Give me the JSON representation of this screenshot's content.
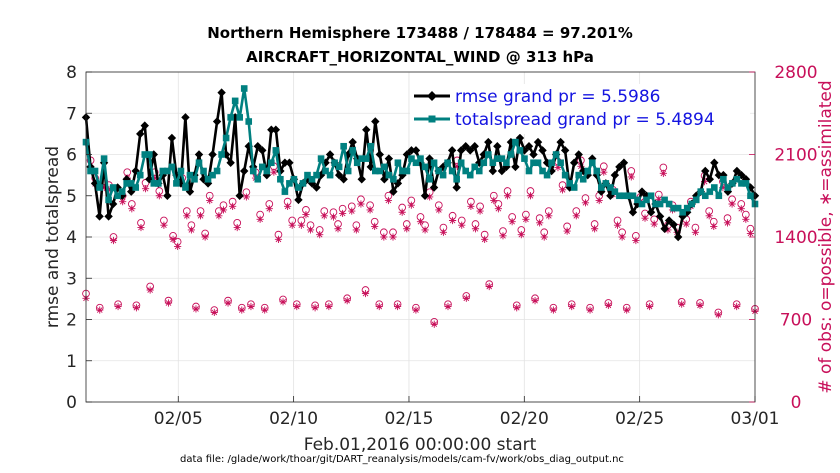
{
  "chart_data": {
    "type": "line",
    "title_line1": "Northern Hemisphere 173488 / 178484 = 97.201%",
    "title_line2": "AIRCRAFT_HORIZONTAL_WIND @ 313 hPa",
    "ylabel": "rmse and totalspread",
    "ylabel_right": "# of obs: o=possible, ∗=assimilated",
    "xlabel": "Feb.01,2016 00:00:00 start",
    "footnote": "data file: /glade/work/thoar/git/DART_reanalysis/models/cam-fv/work/obs_diag_output.nc",
    "ylim": [
      0,
      8
    ],
    "ylim_right": [
      0,
      2800
    ],
    "xlim": [
      1,
      30
    ],
    "y_ticks": [
      {
        "v": 0,
        "label": "0"
      },
      {
        "v": 1,
        "label": "1"
      },
      {
        "v": 2,
        "label": "2"
      },
      {
        "v": 3,
        "label": "3"
      },
      {
        "v": 4,
        "label": "4"
      },
      {
        "v": 5,
        "label": "5"
      },
      {
        "v": 6,
        "label": "6"
      },
      {
        "v": 7,
        "label": "7"
      },
      {
        "v": 8,
        "label": "8"
      }
    ],
    "y_right_ticks": [
      {
        "v": 0,
        "label": "0"
      },
      {
        "v": 700,
        "label": "700"
      },
      {
        "v": 1400,
        "label": "1400"
      },
      {
        "v": 2100,
        "label": "2100"
      },
      {
        "v": 2800,
        "label": "2800"
      }
    ],
    "x_ticks": [
      {
        "v": 5,
        "label": "02/05"
      },
      {
        "v": 10,
        "label": "02/10"
      },
      {
        "v": 15,
        "label": "02/15"
      },
      {
        "v": 20,
        "label": "02/20"
      },
      {
        "v": 25,
        "label": "02/25"
      },
      {
        "v": 30,
        "label": "03/01"
      }
    ],
    "series": [
      {
        "name": "rmse",
        "legend": "rmse grand pr = 5.5986",
        "color": "#000000",
        "marker": "diamond",
        "values": [
          6.9,
          5.7,
          5.3,
          4.5,
          5.8,
          4.5,
          4.8,
          5.2,
          5.0,
          5.4,
          5.1,
          5.6,
          6.5,
          6.7,
          5.4,
          6.0,
          5.3,
          5.5,
          5.0,
          6.4,
          5.5,
          5.3,
          6.9,
          5.1,
          5.5,
          6.0,
          5.4,
          5.3,
          6.0,
          6.8,
          7.5,
          6.0,
          5.8,
          6.9,
          5.0,
          5.6,
          6.2,
          5.7,
          6.2,
          6.1,
          5.5,
          6.6,
          6.6,
          5.6,
          5.8,
          5.8,
          5.4,
          4.9,
          5.3,
          5.4,
          5.3,
          5.2,
          5.5,
          5.8,
          6.0,
          5.8,
          5.5,
          5.4,
          6.0,
          6.3,
          5.9,
          5.4,
          6.6,
          5.7,
          6.8,
          6.0,
          5.4,
          5.9,
          5.1,
          5.3,
          5.5,
          6.0,
          6.1,
          6.1,
          5.8,
          5.0,
          5.9,
          5.2,
          5.6,
          5.7,
          5.8,
          6.1,
          5.2,
          6.1,
          6.2,
          6.1,
          6.2,
          5.8,
          6.0,
          6.3,
          5.6,
          6.2,
          5.6,
          5.7,
          6.3,
          5.7,
          6.4,
          6.1,
          6.2,
          6.0,
          6.3,
          6.1,
          5.8,
          5.6,
          6.0,
          6.3,
          6.1,
          5.2,
          5.8,
          6.0,
          5.6,
          5.5,
          5.9,
          5.5,
          5.1,
          5.3,
          5.0,
          5.5,
          5.7,
          5.8,
          5.0,
          4.6,
          4.8,
          5.1,
          5.0,
          4.6,
          4.8,
          4.5,
          4.2,
          4.4,
          4.3,
          4.0,
          4.5,
          4.6,
          4.8,
          5.0,
          5.1,
          5.6,
          5.4,
          5.8,
          5.5,
          5.5,
          5.1,
          5.3,
          5.6,
          5.5,
          5.4,
          5.2,
          5.0
        ]
      },
      {
        "name": "totalspread",
        "legend": "totalspread grand pr = 5.4894",
        "color": "#008080",
        "marker": "square",
        "values": [
          6.3,
          5.6,
          5.6,
          5.2,
          5.9,
          4.9,
          5.2,
          5.0,
          5.1,
          5.3,
          5.3,
          5.2,
          5.5,
          6.0,
          6.0,
          5.3,
          5.3,
          5.6,
          5.6,
          5.7,
          5.3,
          5.6,
          5.2,
          5.5,
          5.4,
          5.8,
          5.6,
          5.4,
          5.5,
          5.6,
          6.0,
          6.4,
          6.9,
          7.3,
          6.9,
          7.6,
          6.8,
          5.6,
          5.4,
          5.7,
          5.6,
          5.8,
          6.1,
          5.4,
          5.1,
          5.3,
          5.4,
          5.2,
          5.3,
          5.5,
          5.4,
          5.5,
          5.9,
          5.6,
          5.5,
          5.8,
          5.7,
          6.2,
          5.6,
          6.1,
          5.8,
          5.9,
          5.9,
          6.2,
          5.6,
          5.6,
          5.7,
          5.5,
          5.4,
          5.8,
          5.6,
          5.6,
          5.9,
          5.8,
          5.9,
          5.7,
          5.4,
          5.8,
          5.6,
          5.5,
          5.8,
          5.6,
          5.4,
          5.8,
          5.6,
          5.5,
          5.7,
          5.6,
          5.8,
          6.0,
          5.8,
          5.9,
          5.9,
          5.8,
          6.0,
          6.3,
          6.1,
          5.9,
          5.6,
          5.8,
          5.8,
          5.6,
          5.5,
          5.8,
          6.0,
          5.8,
          5.5,
          5.3,
          5.2,
          5.5,
          5.4,
          5.6,
          5.8,
          5.6,
          5.2,
          5.3,
          5.2,
          5.1,
          5.0,
          5.0,
          5.0,
          5.0,
          4.9,
          4.8,
          4.9,
          5.0,
          4.8,
          4.8,
          4.9,
          4.8,
          4.7,
          4.7,
          4.6,
          4.7,
          4.8,
          4.9,
          5.1,
          5.0,
          5.1,
          5.2,
          5.0,
          5.4,
          5.2,
          5.3,
          5.4,
          5.3,
          5.3,
          5.0,
          4.8
        ]
      }
    ],
    "obs_possible": {
      "name": "possible",
      "color": "#c8105a",
      "marker": "circle",
      "values": [
        920,
        2050,
        1900,
        800,
        1870,
        1840,
        1400,
        830,
        1750,
        1950,
        1680,
        820,
        1520,
        1860,
        980,
        1950,
        1790,
        1540,
        860,
        1410,
        1360,
        1900,
        1620,
        1500,
        810,
        1620,
        1430,
        1750,
        780,
        1620,
        1670,
        860,
        1700,
        1520,
        800,
        1780,
        830,
        1950,
        1590,
        800,
        1680,
        2000,
        1420,
        870,
        1700,
        1540,
        830,
        1540,
        1630,
        1500,
        820,
        1460,
        1620,
        830,
        1610,
        1510,
        1640,
        880,
        1660,
        1500,
        1720,
        950,
        1670,
        1530,
        830,
        1440,
        1750,
        1440,
        830,
        1650,
        1510,
        1710,
        800,
        1570,
        1500,
        1780,
        680,
        1670,
        1480,
        830,
        1580,
        2050,
        1540,
        900,
        1700,
        1510,
        1660,
        1420,
        1000,
        1750,
        1680,
        1450,
        1790,
        1570,
        820,
        1460,
        1590,
        1790,
        880,
        1560,
        1440,
        1620,
        800,
        2040,
        1840,
        1490,
        830,
        1620,
        2050,
        1730,
        800,
        1510,
        1750,
        2000,
        840,
        1800,
        1540,
        1440,
        800,
        1960,
        1410,
        1740,
        1600,
        830,
        1550,
        1760,
        1990,
        1500,
        1670,
        1480,
        850,
        1550,
        1700,
        1480,
        840,
        1920,
        1620,
        1530,
        760,
        1870,
        1560,
        1720,
        830,
        1680,
        1590,
        1470,
        790
      ]
    },
    "obs_assimilated": {
      "name": "assimilated",
      "color": "#c8105a",
      "marker": "asterisk",
      "values": [
        880,
        1990,
        1850,
        780,
        1820,
        1800,
        1370,
        810,
        1700,
        1900,
        1640,
        800,
        1480,
        1810,
        950,
        1900,
        1750,
        1500,
        840,
        1380,
        1320,
        1850,
        1580,
        1460,
        790,
        1580,
        1400,
        1710,
        760,
        1580,
        1630,
        840,
        1660,
        1480,
        780,
        1740,
        810,
        1900,
        1550,
        780,
        1640,
        1950,
        1380,
        850,
        1660,
        1500,
        810,
        1500,
        1590,
        1460,
        800,
        1420,
        1580,
        810,
        1570,
        1470,
        1600,
        860,
        1620,
        1460,
        1680,
        920,
        1630,
        1490,
        810,
        1400,
        1710,
        1400,
        810,
        1610,
        1470,
        1670,
        780,
        1530,
        1460,
        1740,
        660,
        1630,
        1440,
        810,
        1540,
        2000,
        1500,
        880,
        1660,
        1470,
        1620,
        1380,
        980,
        1710,
        1640,
        1410,
        1750,
        1530,
        800,
        1420,
        1550,
        1750,
        860,
        1520,
        1400,
        1580,
        780,
        1990,
        1800,
        1450,
        810,
        1580,
        2000,
        1690,
        780,
        1470,
        1710,
        1950,
        820,
        1760,
        1500,
        1400,
        780,
        1910,
        1370,
        1700,
        1560,
        810,
        1510,
        1720,
        1940,
        1460,
        1630,
        1440,
        830,
        1510,
        1660,
        1440,
        820,
        1870,
        1580,
        1490,
        740,
        1820,
        1520,
        1680,
        810,
        1640,
        1550,
        1430,
        770
      ]
    }
  }
}
